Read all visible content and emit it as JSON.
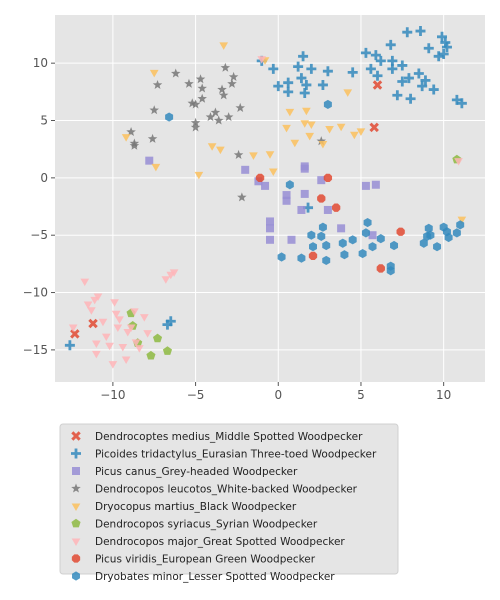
{
  "chart_data": {
    "type": "scatter",
    "title": "",
    "xlabel": "",
    "ylabel": "",
    "xlim": [
      -13.5,
      12.5
    ],
    "ylim": [
      -17.8,
      14.2
    ],
    "xticks": [
      -10,
      -5,
      0,
      5,
      10
    ],
    "yticks": [
      -15,
      -10,
      -5,
      0,
      5,
      10
    ],
    "grid": true,
    "legend_position": "below plot",
    "series": [
      {
        "name": "Dendrocoptes medius_Middle Spotted Woodpecker",
        "marker": "x",
        "color": "#e24a33",
        "points": [
          [
            6.0,
            8.1
          ],
          [
            5.8,
            4.4
          ],
          [
            -11.2,
            -12.7
          ],
          [
            -12.3,
            -13.6
          ]
        ]
      },
      {
        "name": "Picoides tridactylus_Eurasian Three-toed Woodpecker",
        "marker": "plus",
        "color": "#348abd",
        "points": [
          [
            -1.0,
            10.2
          ],
          [
            -0.3,
            9.5
          ],
          [
            0.0,
            8.0
          ],
          [
            0.6,
            8.3
          ],
          [
            0.6,
            7.5
          ],
          [
            1.2,
            9.7
          ],
          [
            1.5,
            10.6
          ],
          [
            1.4,
            8.7
          ],
          [
            1.6,
            7.4
          ],
          [
            1.7,
            8.1
          ],
          [
            2.0,
            9.5
          ],
          [
            2.7,
            8.1
          ],
          [
            3.0,
            9.3
          ],
          [
            4.5,
            9.2
          ],
          [
            5.3,
            10.9
          ],
          [
            5.6,
            9.5
          ],
          [
            5.9,
            10.7
          ],
          [
            6.0,
            8.9
          ],
          [
            6.2,
            10.2
          ],
          [
            6.8,
            11.6
          ],
          [
            6.9,
            9.5
          ],
          [
            6.9,
            10.2
          ],
          [
            7.2,
            7.2
          ],
          [
            7.5,
            8.4
          ],
          [
            7.5,
            9.8
          ],
          [
            7.8,
            12.7
          ],
          [
            7.9,
            8.7
          ],
          [
            8.0,
            6.9
          ],
          [
            8.5,
            9.1
          ],
          [
            8.6,
            12.8
          ],
          [
            8.7,
            8.0
          ],
          [
            8.9,
            8.5
          ],
          [
            9.1,
            11.3
          ],
          [
            9.4,
            7.7
          ],
          [
            9.7,
            10.6
          ],
          [
            9.9,
            12.3
          ],
          [
            10.0,
            10.8
          ],
          [
            10.1,
            11.8
          ],
          [
            10.2,
            11.4
          ],
          [
            10.8,
            6.8
          ],
          [
            11.1,
            6.5
          ],
          [
            1.8,
            -2.6
          ],
          [
            -6.5,
            -12.5
          ],
          [
            -6.7,
            -12.8
          ],
          [
            -12.6,
            -14.6
          ]
        ]
      },
      {
        "name": "Picus canus_Grey-headed Woodpecker",
        "marker": "square",
        "color": "#988ed5",
        "points": [
          [
            -7.8,
            1.5
          ],
          [
            -2.0,
            0.7
          ],
          [
            -1.2,
            -0.3
          ],
          [
            -0.8,
            -0.7
          ],
          [
            -0.5,
            -3.8
          ],
          [
            -0.5,
            -4.4
          ],
          [
            -0.5,
            -5.4
          ],
          [
            0.5,
            -1.5
          ],
          [
            0.5,
            -2.0
          ],
          [
            0.8,
            -5.4
          ],
          [
            1.4,
            -2.8
          ],
          [
            1.6,
            1.0
          ],
          [
            1.6,
            0.8
          ],
          [
            1.6,
            -1.4
          ],
          [
            2.6,
            -0.2
          ],
          [
            3.0,
            -2.8
          ],
          [
            3.8,
            -4.4
          ],
          [
            5.3,
            -0.7
          ],
          [
            5.7,
            -5.0
          ],
          [
            5.9,
            -0.6
          ]
        ]
      },
      {
        "name": "Dendrocopos leucotos_White-backed Woodpecker",
        "marker": "star",
        "color": "#777777",
        "points": [
          [
            -8.9,
            4.0
          ],
          [
            -8.7,
            2.8
          ],
          [
            -8.7,
            3.0
          ],
          [
            -7.6,
            3.4
          ],
          [
            -7.5,
            5.9
          ],
          [
            -7.3,
            8.1
          ],
          [
            -6.2,
            9.1
          ],
          [
            -5.4,
            8.2
          ],
          [
            -5.2,
            6.5
          ],
          [
            -5.0,
            6.4
          ],
          [
            -5.0,
            4.4
          ],
          [
            -5.0,
            4.8
          ],
          [
            -4.7,
            8.6
          ],
          [
            -4.6,
            7.8
          ],
          [
            -4.6,
            6.9
          ],
          [
            -4.1,
            5.3
          ],
          [
            -3.8,
            5.7
          ],
          [
            -3.6,
            5.0
          ],
          [
            -3.4,
            7.7
          ],
          [
            -3.3,
            7.2
          ],
          [
            -3.2,
            9.6
          ],
          [
            -3.0,
            5.3
          ],
          [
            -2.8,
            8.2
          ],
          [
            -2.7,
            8.8
          ],
          [
            -2.3,
            6.1
          ],
          [
            -2.4,
            2.0
          ],
          [
            -2.2,
            -1.7
          ],
          [
            2.6,
            3.2
          ]
        ]
      },
      {
        "name": "Dryocopus martius_Black Woodpecker",
        "marker": "triangle-down",
        "color": "#fbc15e",
        "points": [
          [
            -9.2,
            3.6
          ],
          [
            -7.5,
            9.2
          ],
          [
            -7.4,
            1.0
          ],
          [
            -4.8,
            0.3
          ],
          [
            -4.0,
            2.8
          ],
          [
            -3.5,
            2.5
          ],
          [
            -3.3,
            11.6
          ],
          [
            -1.5,
            2.0
          ],
          [
            -0.8,
            10.3
          ],
          [
            -0.5,
            2.1
          ],
          [
            -0.3,
            0.6
          ],
          [
            0.5,
            4.4
          ],
          [
            0.7,
            5.8
          ],
          [
            1.0,
            3.1
          ],
          [
            1.6,
            4.8
          ],
          [
            1.7,
            5.9
          ],
          [
            1.9,
            3.7
          ],
          [
            2.0,
            4.7
          ],
          [
            2.7,
            3.0
          ],
          [
            3.1,
            4.3
          ],
          [
            3.8,
            4.5
          ],
          [
            4.2,
            7.5
          ],
          [
            4.6,
            3.8
          ],
          [
            5.0,
            4.1
          ],
          [
            11.1,
            -3.6
          ]
        ]
      },
      {
        "name": "Dendrocopos syriacus_Syrian Woodpecker",
        "marker": "pentagon",
        "color": "#8eba42",
        "points": [
          [
            -8.9,
            -11.8
          ],
          [
            -8.8,
            -12.9
          ],
          [
            -8.5,
            -14.4
          ],
          [
            -7.7,
            -15.5
          ],
          [
            -7.3,
            -14.0
          ],
          [
            -6.7,
            -15.1
          ],
          [
            10.8,
            1.6
          ]
        ]
      },
      {
        "name": "Dendrocopos major_Great Spotted Woodpecker",
        "marker": "triangle-down",
        "color": "#ffb5b8",
        "points": [
          [
            -12.4,
            -13.0
          ],
          [
            -11.7,
            -9.0
          ],
          [
            -11.5,
            -11.0
          ],
          [
            -11.3,
            -11.5
          ],
          [
            -11.1,
            -10.6
          ],
          [
            -10.9,
            -10.3
          ],
          [
            -11.0,
            -14.4
          ],
          [
            -11.0,
            -15.3
          ],
          [
            -10.6,
            -12.5
          ],
          [
            -10.4,
            -13.8
          ],
          [
            -10.2,
            -14.6
          ],
          [
            -10.0,
            -16.2
          ],
          [
            -9.9,
            -10.8
          ],
          [
            -9.8,
            -11.8
          ],
          [
            -9.7,
            -13.0
          ],
          [
            -9.6,
            -12.3
          ],
          [
            -9.4,
            -14.7
          ],
          [
            -9.2,
            -15.8
          ],
          [
            -9.1,
            -13.4
          ],
          [
            -8.9,
            -13.0
          ],
          [
            -8.7,
            -11.6
          ],
          [
            -8.6,
            -14.3
          ],
          [
            -8.4,
            -14.8
          ],
          [
            -8.1,
            -12.1
          ],
          [
            -7.9,
            -13.5
          ],
          [
            -6.8,
            -8.8
          ],
          [
            -6.5,
            -8.4
          ],
          [
            -6.3,
            -8.2
          ],
          [
            -1.0,
            10.4
          ],
          [
            10.9,
            1.5
          ]
        ]
      },
      {
        "name": "Picus viridis_European Green Woodpecker",
        "marker": "octagon",
        "color": "#e24a33",
        "points": [
          [
            -1.1,
            0.0
          ],
          [
            2.1,
            -6.8
          ],
          [
            2.6,
            -1.8
          ],
          [
            3.0,
            0.0
          ],
          [
            3.5,
            -2.6
          ],
          [
            6.2,
            -7.9
          ],
          [
            7.4,
            -4.7
          ]
        ]
      },
      {
        "name": "Dryobates minor_Lesser Spotted Woodpecker",
        "marker": "hexagon",
        "color": "#348abd",
        "points": [
          [
            -6.6,
            5.3
          ],
          [
            0.2,
            -6.9
          ],
          [
            0.7,
            -0.6
          ],
          [
            1.4,
            -7.0
          ],
          [
            2.0,
            -5.0
          ],
          [
            2.1,
            -6.0
          ],
          [
            2.6,
            -5.1
          ],
          [
            2.7,
            -4.3
          ],
          [
            2.9,
            -5.9
          ],
          [
            2.9,
            -7.2
          ],
          [
            3.0,
            6.4
          ],
          [
            3.9,
            -5.7
          ],
          [
            4.0,
            -6.7
          ],
          [
            4.5,
            -5.4
          ],
          [
            5.1,
            -6.6
          ],
          [
            5.3,
            -4.8
          ],
          [
            5.4,
            -3.9
          ],
          [
            5.7,
            -6.0
          ],
          [
            6.2,
            -5.3
          ],
          [
            6.8,
            -7.7
          ],
          [
            6.8,
            -8.1
          ],
          [
            7.0,
            -5.9
          ],
          [
            8.8,
            -5.7
          ],
          [
            9.0,
            -5.1
          ],
          [
            9.1,
            -4.4
          ],
          [
            9.2,
            -5.0
          ],
          [
            9.6,
            -6.0
          ],
          [
            10.0,
            -4.3
          ],
          [
            10.2,
            -4.7
          ],
          [
            10.3,
            -5.2
          ],
          [
            10.8,
            -4.8
          ],
          [
            11.0,
            -4.1
          ]
        ]
      }
    ]
  }
}
